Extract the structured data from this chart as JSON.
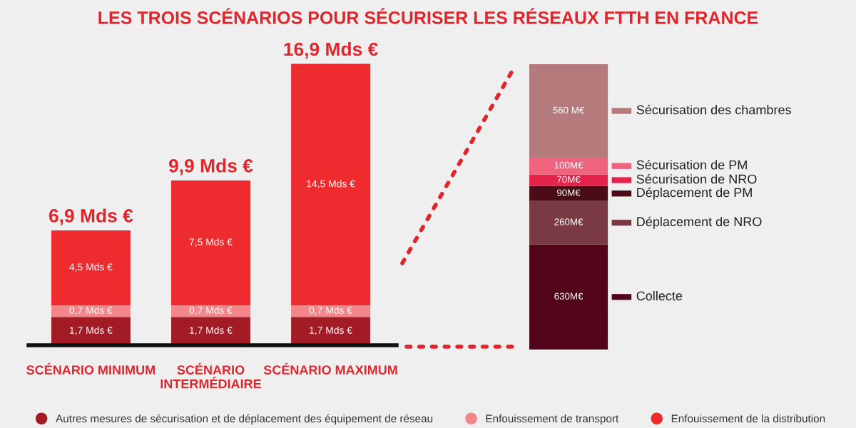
{
  "chart_data": [
    {
      "type": "bar",
      "title": "LES TROIS SCÉNARIOS POUR SÉCURISER LES RÉSEAUX FTTH EN FRANCE",
      "stacked": true,
      "legend": "bottom",
      "categories": [
        "SCÉNARIO MINIMUM",
        "SCÉNARIO\nINTERMÉDIAIRE",
        "SCÉNARIO MAXIMUM"
      ],
      "series": [
        {
          "name": "Autres mesures de sécurisation et de déplacement des équipement de réseau",
          "color": "#a31b24",
          "values": [
            1.7,
            1.7,
            1.7
          ],
          "value_labels": [
            "1,7 Mds €",
            "1,7 Mds €",
            "1,7 Mds €"
          ]
        },
        {
          "name": "Enfouissement de transport",
          "color": "#f2868a",
          "values": [
            0.7,
            0.7,
            0.7
          ],
          "value_labels": [
            "0,7 Mds €",
            "0,7 Mds €",
            "0,7 Mds €"
          ]
        },
        {
          "name": "Enfouissement de la distribution",
          "color": "#ee2b2e",
          "values": [
            4.5,
            7.5,
            14.5
          ],
          "value_labels": [
            "4,5 Mds €",
            "7,5 Mds €",
            "14,5 Mds €"
          ]
        }
      ],
      "totals": [
        "6,9 Mds €",
        "9,9 Mds €",
        "16,9 Mds €"
      ]
    },
    {
      "type": "bar",
      "stacked": true,
      "categories": [
        null
      ],
      "legend": "right",
      "series": [
        {
          "name": "Collecte",
          "color": "#52051a",
          "values": [
            630
          ],
          "value_labels": [
            "630M€"
          ]
        },
        {
          "name": "Déplacement de NRO",
          "color": "#7a3a44",
          "values": [
            260
          ],
          "value_labels": [
            "260M€"
          ]
        },
        {
          "name": "Déplacement de PM",
          "color": "#4a0c16",
          "values": [
            90
          ],
          "value_labels": [
            "90M€"
          ]
        },
        {
          "name": "Sécurisation de NRO",
          "color": "#e3234a",
          "values": [
            70
          ],
          "value_labels": [
            "70M€"
          ]
        },
        {
          "name": "Sécurisation de PM",
          "color": "#f0637f",
          "values": [
            100
          ],
          "value_labels": [
            "100M€"
          ]
        },
        {
          "name": "Sécurisation des chambres",
          "color": "#b57a7c",
          "values": [
            560
          ],
          "value_labels": [
            "560 M€"
          ]
        }
      ]
    }
  ]
}
